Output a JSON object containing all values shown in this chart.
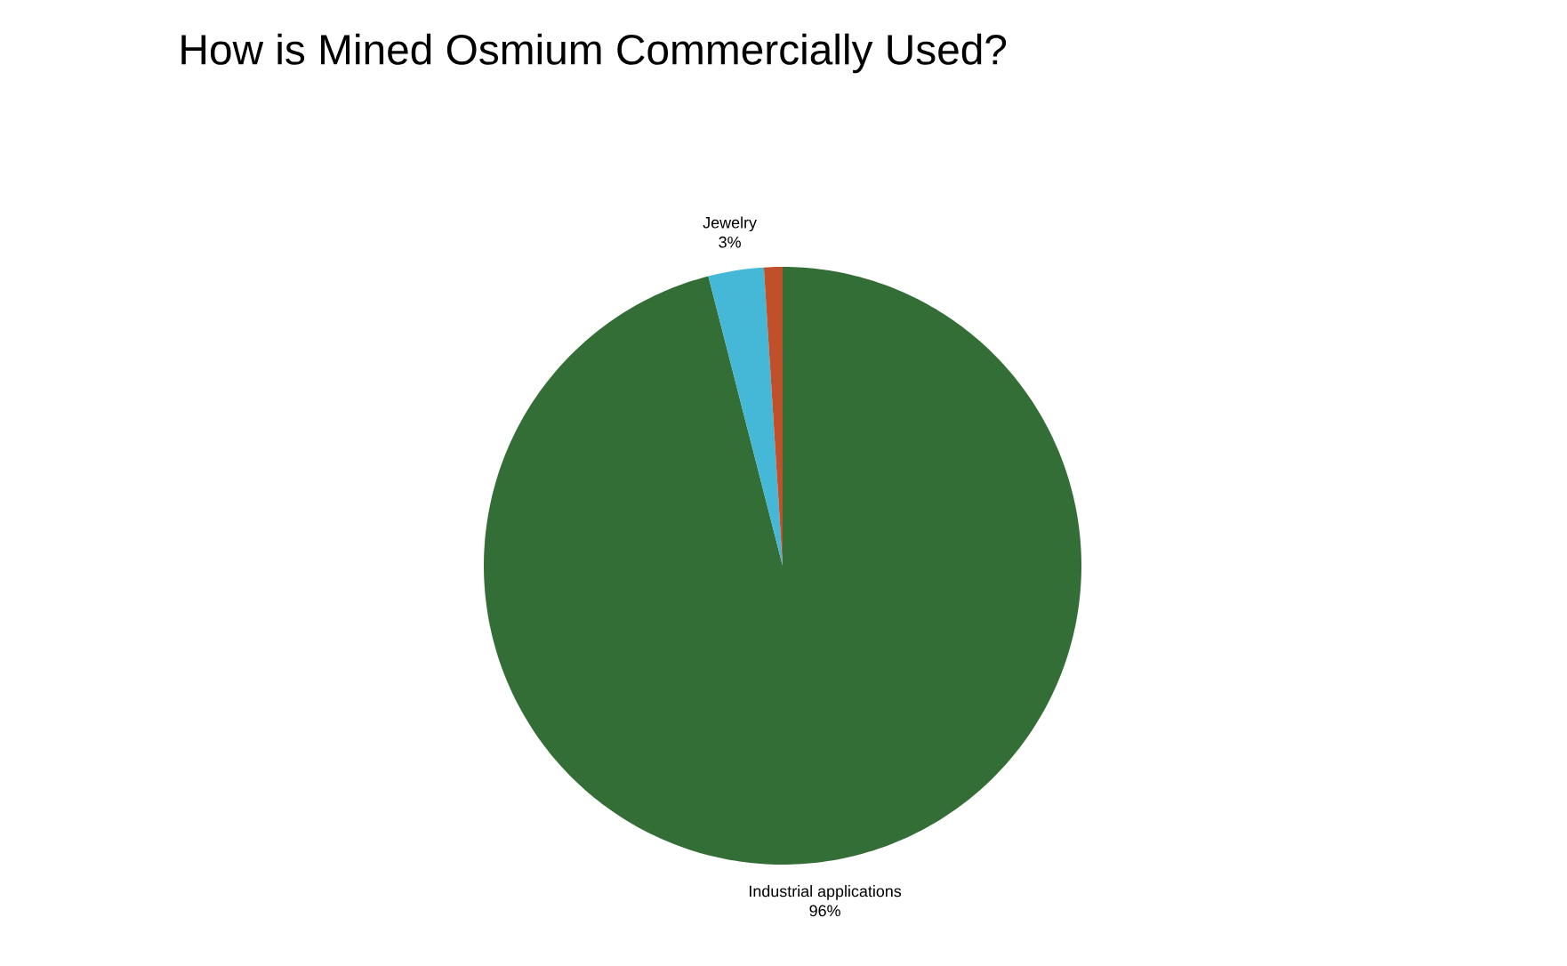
{
  "chart_data": {
    "type": "pie",
    "title": "How is Mined Osmium Commercially Used?",
    "categories": [
      "Industrial applications",
      "Jewelry",
      null
    ],
    "values": [
      96,
      3,
      1
    ],
    "value_labels": [
      "96%",
      "3%",
      null
    ],
    "colors": [
      "#336e37",
      "#45b8d8",
      "#c0502a"
    ]
  }
}
